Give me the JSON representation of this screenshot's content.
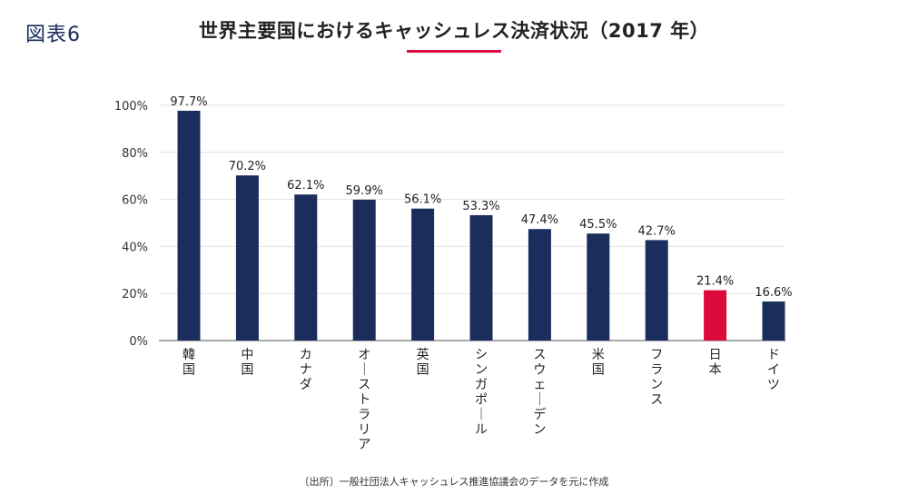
{
  "figure_label": "図表6",
  "source": "〔出所〕一般社団法人キャッシュレス推進協議会のデータを元に作成",
  "colors": {
    "bar": "#1b2d5c",
    "highlight": "#dc0a3c",
    "accent_line": "#dc0a3c",
    "grid": "#e2e2e2",
    "axis": "#555555"
  },
  "chart_data": {
    "type": "bar",
    "title": "世界主要国におけるキャッシュレス決済状況（2017 年）",
    "xlabel": "",
    "ylabel": "",
    "ylim": [
      0,
      100
    ],
    "yticks": [
      {
        "value": 0,
        "label": "0%"
      },
      {
        "value": 20,
        "label": "20%"
      },
      {
        "value": 40,
        "label": "40%"
      },
      {
        "value": 60,
        "label": "60%"
      },
      {
        "value": 80,
        "label": "80%"
      },
      {
        "value": 100,
        "label": "100%"
      }
    ],
    "categories": [
      "韓国",
      "中国",
      "カナダ",
      "オーストラリア",
      "英国",
      "シンガポール",
      "スウェーデン",
      "米国",
      "フランス",
      "日本",
      "ドイツ"
    ],
    "values": [
      97.7,
      70.2,
      62.1,
      59.9,
      56.1,
      53.3,
      47.4,
      45.5,
      42.7,
      21.4,
      16.6
    ],
    "value_labels": [
      "97.7%",
      "70.2%",
      "62.1%",
      "59.9%",
      "56.1%",
      "53.3%",
      "47.4%",
      "45.5%",
      "42.7%",
      "21.4%",
      "16.6%"
    ],
    "highlight_category": "日本",
    "grid": true
  }
}
